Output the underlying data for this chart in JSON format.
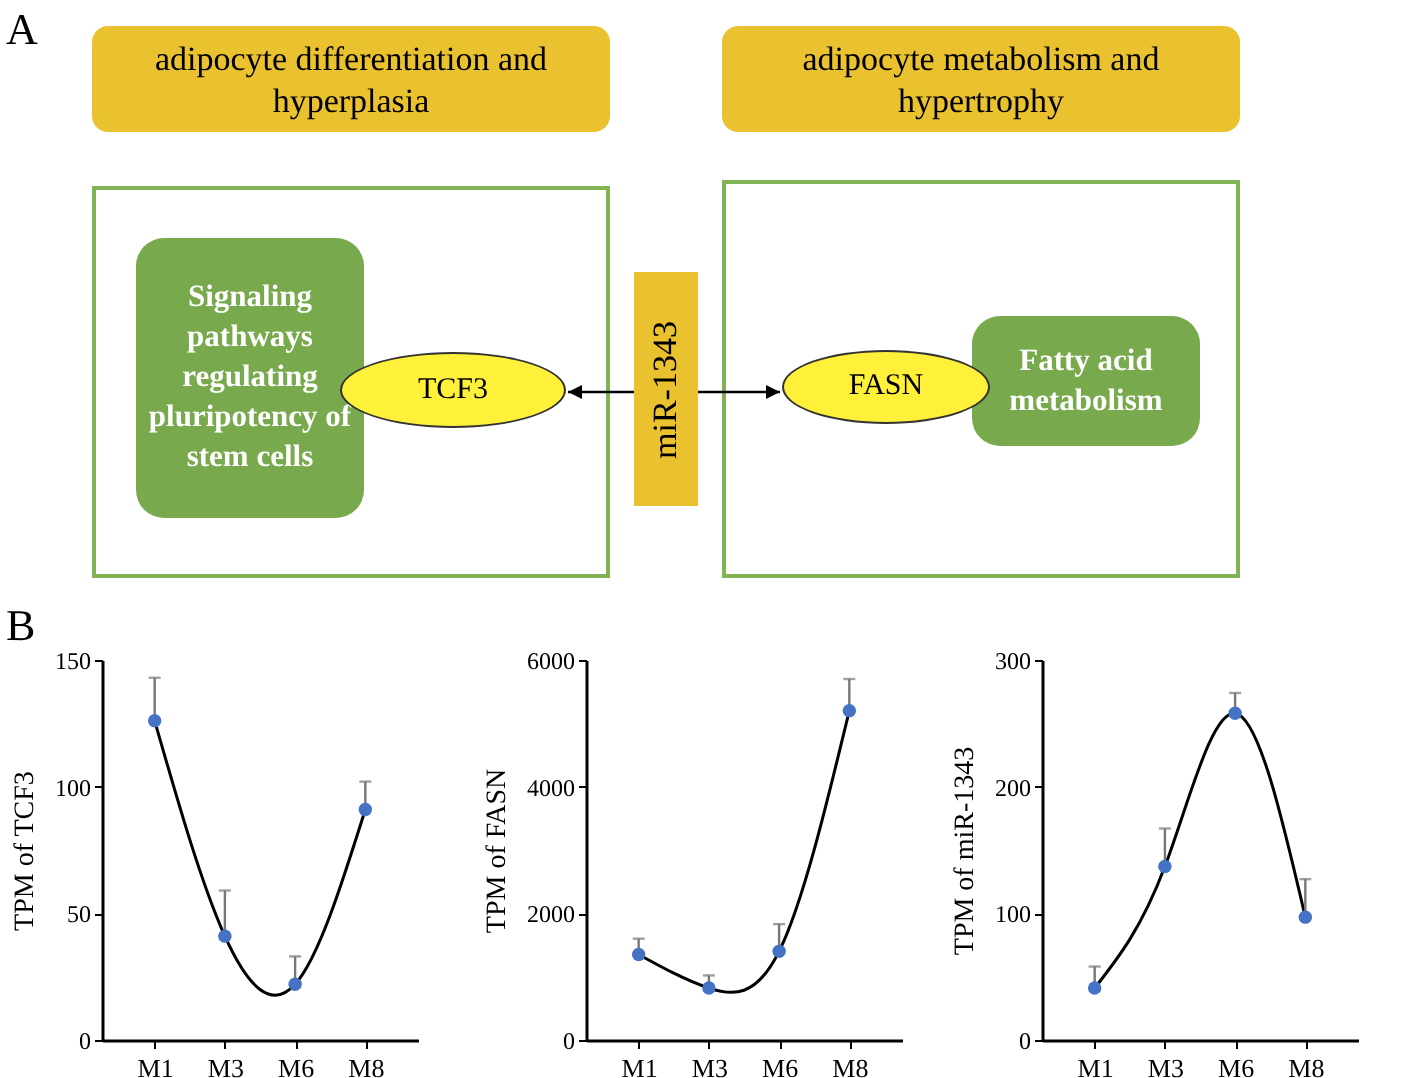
{
  "chart_data": [
    {
      "type": "other",
      "annotations": [
        "A",
        "adipocyte differentiation and hyperplasia",
        "adipocyte metabolism and hypertrophy",
        "Signaling pathways regulating pluripotency of stem cells",
        "TCF3",
        "miR-1343",
        "FASN",
        "Fatty acid metabolism"
      ]
    },
    {
      "type": "line",
      "ylabel": "TPM of TCF3",
      "annotations": [
        "B"
      ],
      "categories": [
        "M1",
        "M3",
        "M6",
        "M8"
      ],
      "marker": "circle",
      "ylim": [
        0,
        150
      ],
      "yticks": [
        0,
        50,
        100,
        150
      ],
      "series": [
        {
          "color": "#4472c4",
          "values": [
            126,
            41,
            22,
            91
          ],
          "errors": [
            [
              126,
              143
            ],
            [
              41,
              59
            ],
            [
              22,
              33
            ],
            [
              91,
              102
            ]
          ]
        }
      ]
    },
    {
      "type": "line",
      "ylabel": "TPM of FASN",
      "categories": [
        "M1",
        "M3",
        "M6",
        "M8"
      ],
      "marker": "circle",
      "ylim": [
        0,
        6000
      ],
      "yticks": [
        0,
        2000,
        4000,
        6000
      ],
      "series": [
        {
          "color": "#4472c4",
          "values": [
            1350,
            820,
            1400,
            5200
          ],
          "errors": [
            [
              1350,
              1600
            ],
            [
              820,
              1020
            ],
            [
              1400,
              1830
            ],
            [
              5200,
              5700
            ]
          ]
        }
      ]
    },
    {
      "type": "line",
      "ylabel": "TPM of miR-1343",
      "categories": [
        "M1",
        "M3",
        "M6",
        "M8"
      ],
      "marker": "circle",
      "ylim": [
        0,
        300
      ],
      "yticks": [
        0,
        100,
        200,
        300
      ],
      "series": [
        {
          "color": "#4472c4",
          "values": [
            41,
            137,
            258,
            97
          ],
          "errors": [
            [
              41,
              58
            ],
            [
              137,
              167
            ],
            [
              258,
              274
            ],
            [
              97,
              127
            ]
          ]
        }
      ]
    }
  ]
}
